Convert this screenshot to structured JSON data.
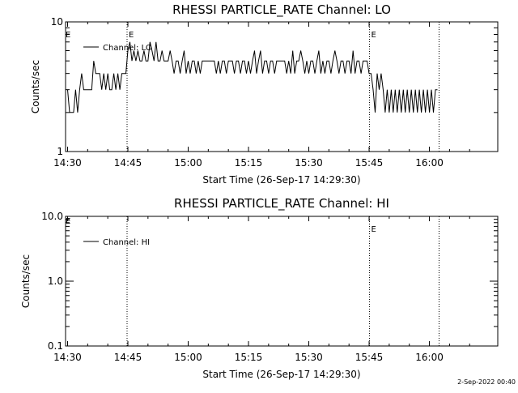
{
  "footer_date": "2-Sep-2022 00:40",
  "colors": {
    "background": "#ffffff",
    "foreground": "#000000"
  },
  "chart_data": [
    {
      "type": "line",
      "title": "RHESSI PARTICLE_RATE Channel: LO",
      "xlabel": "Start Time (26-Sep-17 14:29:30)",
      "ylabel": "Counts/sec",
      "yscale": "log",
      "ylim": [
        1,
        10
      ],
      "xlim_minutes_after_1430": [
        -0.5,
        107
      ],
      "x_tick_labels": [
        "14:30",
        "14:45",
        "15:00",
        "15:15",
        "15:30",
        "15:45",
        "16:00"
      ],
      "x_tick_minutes": [
        0,
        15,
        30,
        45,
        60,
        75,
        90
      ],
      "y_tick_labels": [
        "1",
        "10"
      ],
      "y_tick_values": [
        1,
        10
      ],
      "event_lines": [
        {
          "x": 14.8,
          "label": "E"
        },
        {
          "x": 75.1,
          "label": "E"
        },
        {
          "x": 92.4,
          "label": ""
        }
      ],
      "left_marker": "E",
      "legend": "Channel: LO",
      "series": [
        {
          "name": "Channel: LO",
          "x": [
            0.0,
            0.5,
            1.0,
            1.5,
            2.0,
            2.5,
            3.0,
            3.5,
            4.0,
            4.5,
            5.0,
            5.5,
            6.0,
            6.5,
            7.0,
            7.5,
            8.0,
            8.5,
            9.0,
            9.5,
            10.0,
            10.5,
            11.0,
            11.5,
            12.0,
            12.5,
            13.0,
            13.5,
            14.0,
            14.5,
            15.0,
            15.5,
            16.0,
            16.5,
            17.0,
            17.5,
            18.0,
            18.5,
            19.0,
            19.5,
            20.0,
            20.5,
            21.0,
            21.5,
            22.0,
            22.5,
            23.0,
            23.5,
            24.0,
            24.5,
            25.0,
            25.5,
            26.0,
            26.5,
            27.0,
            27.5,
            28.0,
            28.5,
            29.0,
            29.5,
            30.0,
            30.5,
            31.0,
            31.5,
            32.0,
            32.5,
            33.0,
            33.5,
            34.0,
            34.5,
            35.0,
            35.5,
            36.0,
            36.5,
            37.0,
            37.5,
            38.0,
            38.5,
            39.0,
            39.5,
            40.0,
            40.5,
            41.0,
            41.5,
            42.0,
            42.5,
            43.0,
            43.5,
            44.0,
            44.5,
            45.0,
            45.5,
            46.0,
            46.5,
            47.0,
            47.5,
            48.0,
            48.5,
            49.0,
            49.5,
            50.0,
            50.5,
            51.0,
            51.5,
            52.0,
            52.5,
            53.0,
            53.5,
            54.0,
            54.5,
            55.0,
            55.5,
            56.0,
            56.5,
            57.0,
            57.5,
            58.0,
            58.5,
            59.0,
            59.5,
            60.0,
            60.5,
            61.0,
            61.5,
            62.0,
            62.5,
            63.0,
            63.5,
            64.0,
            64.5,
            65.0,
            65.5,
            66.0,
            66.5,
            67.0,
            67.5,
            68.0,
            68.5,
            69.0,
            69.5,
            70.0,
            70.5,
            71.0,
            71.5,
            72.0,
            72.5,
            73.0,
            73.5,
            74.0,
            74.5,
            75.0,
            75.5,
            76.0,
            76.5,
            77.0,
            77.5,
            78.0,
            78.5,
            79.0,
            79.5,
            80.0,
            80.5,
            81.0,
            81.5,
            82.0,
            82.5,
            83.0,
            83.5,
            84.0,
            84.5,
            85.0,
            85.5,
            86.0,
            86.5,
            87.0,
            87.5,
            88.0,
            88.5,
            89.0,
            89.5,
            90.0,
            90.5,
            91.0,
            91.5,
            92.0
          ],
          "y": [
            3,
            2,
            2,
            2,
            3,
            2,
            3,
            4,
            3,
            3,
            3,
            3,
            3,
            5,
            4,
            4,
            4,
            3,
            4,
            3,
            4,
            3,
            3,
            4,
            3,
            4,
            3,
            4,
            4,
            4,
            6,
            7,
            5,
            6,
            5,
            6,
            5,
            5,
            6,
            5,
            5,
            7,
            6,
            5,
            7,
            5,
            5,
            6,
            5,
            5,
            5,
            6,
            5,
            4,
            5,
            5,
            4,
            5,
            6,
            4,
            5,
            4,
            5,
            5,
            4,
            5,
            4,
            5,
            5,
            5,
            5,
            5,
            5,
            5,
            4,
            5,
            4,
            5,
            5,
            4,
            5,
            5,
            5,
            4,
            5,
            5,
            4,
            5,
            5,
            4,
            5,
            4,
            5,
            6,
            4,
            5,
            6,
            4,
            5,
            5,
            4,
            5,
            5,
            4,
            5,
            5,
            5,
            5,
            5,
            4,
            5,
            4,
            6,
            4,
            5,
            5,
            6,
            5,
            4,
            5,
            4,
            5,
            5,
            4,
            5,
            6,
            4,
            5,
            4,
            5,
            5,
            4,
            5,
            6,
            5,
            4,
            5,
            5,
            4,
            5,
            5,
            4,
            6,
            4,
            5,
            5,
            4,
            5,
            5,
            5,
            4,
            4,
            3,
            2,
            4,
            3,
            4,
            3,
            2,
            3,
            2,
            3,
            2,
            3,
            2,
            3,
            2,
            3,
            2,
            3,
            2,
            3,
            2,
            3,
            2,
            3,
            2,
            3,
            2,
            3,
            2,
            3,
            2,
            3,
            3
          ]
        }
      ]
    },
    {
      "type": "line",
      "title": "RHESSI PARTICLE_RATE Channel: HI",
      "xlabel": "Start Time (26-Sep-17 14:29:30)",
      "ylabel": "Counts/sec",
      "yscale": "log",
      "ylim": [
        0.1,
        10
      ],
      "xlim_minutes_after_1430": [
        -0.5,
        107
      ],
      "x_tick_labels": [
        "14:30",
        "14:45",
        "15:00",
        "15:15",
        "15:30",
        "15:45",
        "16:00"
      ],
      "x_tick_minutes": [
        0,
        15,
        30,
        45,
        60,
        75,
        90
      ],
      "y_tick_labels": [
        "0.1",
        "1.0",
        "10.0"
      ],
      "y_tick_values": [
        0.1,
        1,
        10
      ],
      "event_lines": [
        {
          "x": 14.8,
          "label": ""
        },
        {
          "x": 75.1,
          "label": "E"
        },
        {
          "x": 92.4,
          "label": ""
        }
      ],
      "left_marker": "E",
      "legend": "Channel: HI",
      "series": [
        {
          "name": "Channel: HI",
          "x": [],
          "y": []
        }
      ]
    }
  ]
}
